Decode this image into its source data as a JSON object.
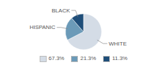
{
  "chart_data": {
    "type": "pie",
    "categories": [
      "WHITE",
      "HISPANIC",
      "BLACK"
    ],
    "values": [
      67.3,
      21.3,
      11.3
    ],
    "value_labels": [
      "67.3%",
      "21.3%",
      "11.3%"
    ],
    "colors": [
      "#d4dce6",
      "#6b9ab8",
      "#1f4e79"
    ],
    "legend": "bottom"
  }
}
